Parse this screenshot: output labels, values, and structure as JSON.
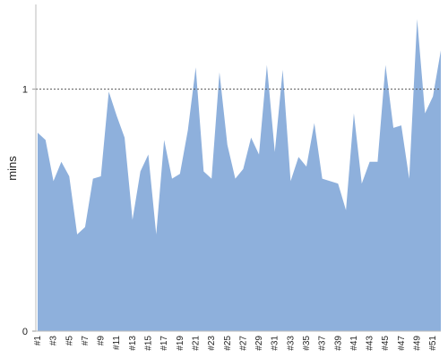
{
  "chart_data": {
    "type": "area",
    "y_label": "mins",
    "categories": [
      "#1",
      null,
      "#3",
      null,
      "#5",
      null,
      "#7",
      null,
      "#9",
      null,
      "#11",
      null,
      "#13",
      null,
      "#15",
      null,
      "#17",
      null,
      "#19",
      null,
      "#21",
      null,
      "#23",
      null,
      "#25",
      null,
      "#27",
      null,
      "#29",
      null,
      "#31",
      null,
      "#33",
      null,
      "#35",
      null,
      "#37",
      null,
      "#39",
      null,
      "#41",
      null,
      "#43",
      null,
      "#45",
      null,
      "#47",
      null,
      "#49",
      null,
      "#51",
      null
    ],
    "values": [
      0.82,
      0.79,
      0.62,
      0.7,
      0.64,
      0.4,
      0.43,
      0.63,
      0.64,
      0.99,
      0.89,
      0.8,
      0.46,
      0.66,
      0.73,
      0.4,
      0.79,
      0.63,
      0.65,
      0.83,
      1.09,
      0.66,
      0.63,
      1.07,
      0.77,
      0.63,
      0.67,
      0.8,
      0.73,
      1.1,
      0.74,
      1.08,
      0.62,
      0.72,
      0.68,
      0.86,
      0.63,
      0.62,
      0.61,
      0.5,
      0.9,
      0.61,
      0.7,
      0.7,
      1.1,
      0.84,
      0.85,
      0.63,
      1.29,
      0.9,
      0.97,
      1.16
    ],
    "color": "#8eb0dc",
    "ylim": [
      0,
      1.35
    ],
    "yticks": [
      0,
      1
    ],
    "grid": true
  }
}
